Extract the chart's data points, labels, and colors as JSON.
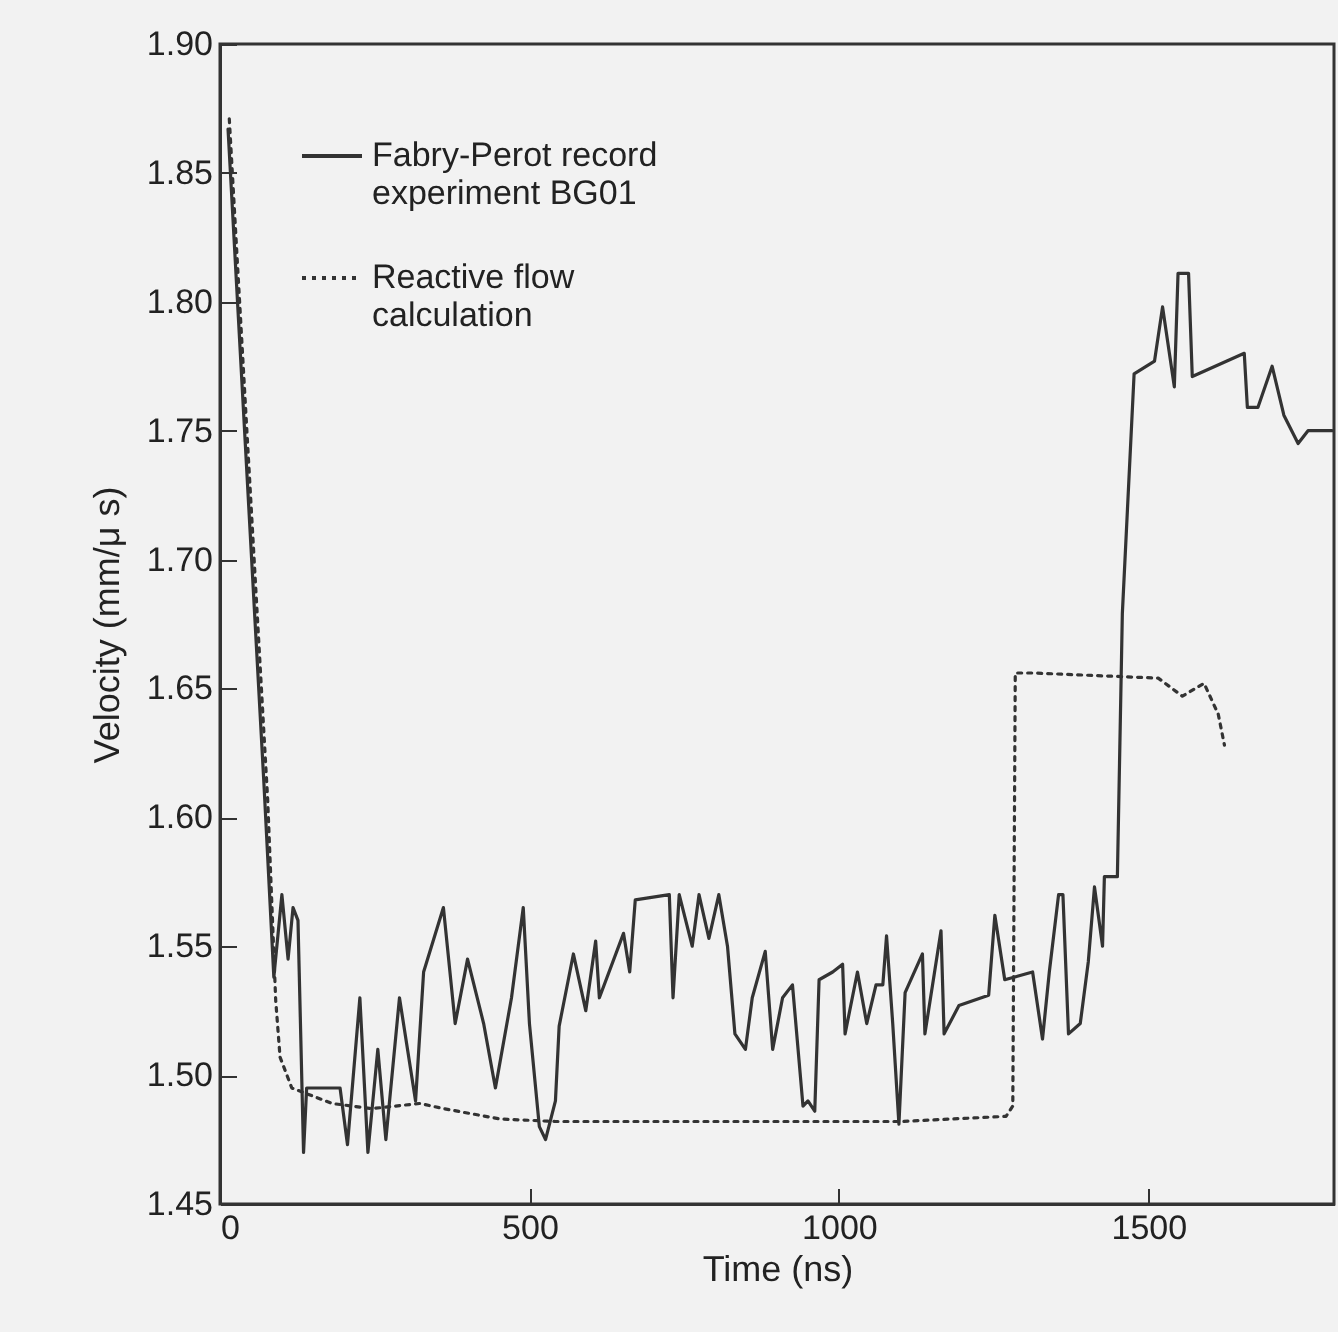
{
  "chart_data": {
    "type": "line",
    "xlabel": "Time (ns)",
    "ylabel": "Velocity (mm/μ s)",
    "xlim": [
      0,
      1800
    ],
    "ylim": [
      1.45,
      1.9
    ],
    "xticks": [
      0,
      500,
      1000,
      1500
    ],
    "yticks": [
      {
        "value": 1.45,
        "label": "1.45"
      },
      {
        "value": 1.5,
        "label": "1.50"
      },
      {
        "value": 1.55,
        "label": "1.55"
      },
      {
        "value": 1.6,
        "label": "1.60"
      },
      {
        "value": 1.65,
        "label": "1.65"
      },
      {
        "value": 1.7,
        "label": "1.70"
      },
      {
        "value": 1.75,
        "label": "1.75"
      },
      {
        "value": 1.8,
        "label": "1.80"
      },
      {
        "value": 1.85,
        "label": "1.85"
      },
      {
        "value": 1.9,
        "label": "1.90"
      }
    ],
    "grid": false,
    "legend": "top left",
    "series": [
      {
        "name": "Fabry-Perot record\nexperiment BG01",
        "color": "#333333",
        "line_style": "solid",
        "x": [
          13,
          71,
          87,
          100,
          110,
          118,
          126,
          135,
          140,
          194,
          206,
          226,
          239,
          255,
          268,
          290,
          316,
          329,
          361,
          380,
          400,
          426,
          445,
          471,
          490,
          500,
          516,
          526,
          542,
          548,
          571,
          591,
          607,
          613,
          652,
          662,
          671,
          726,
          732,
          742,
          763,
          774,
          790,
          806,
          820,
          832,
          849,
          860,
          881,
          893,
          909,
          925,
          942,
          950,
          961,
          968,
          990,
          1006,
          1010,
          1030,
          1045,
          1060,
          1071,
          1077,
          1087,
          1097,
          1107,
          1135,
          1139,
          1165,
          1170,
          1194,
          1242,
          1252,
          1268,
          1313,
          1329,
          1340,
          1355,
          1362,
          1371,
          1390,
          1403,
          1413,
          1426,
          1429,
          1450,
          1458,
          1477,
          1510,
          1523,
          1542,
          1548,
          1565,
          1571,
          1655,
          1660,
          1677,
          1700,
          1719,
          1742,
          1758,
          1797
        ],
        "values": [
          1.867,
          1.613,
          1.538,
          1.57,
          1.545,
          1.565,
          1.56,
          1.47,
          1.495,
          1.495,
          1.473,
          1.53,
          1.47,
          1.51,
          1.475,
          1.53,
          1.49,
          1.54,
          1.565,
          1.52,
          1.545,
          1.52,
          1.495,
          1.53,
          1.565,
          1.52,
          1.48,
          1.475,
          1.49,
          1.519,
          1.547,
          1.525,
          1.552,
          1.53,
          1.555,
          1.54,
          1.568,
          1.57,
          1.53,
          1.57,
          1.55,
          1.57,
          1.553,
          1.57,
          1.55,
          1.516,
          1.51,
          1.53,
          1.548,
          1.51,
          1.53,
          1.535,
          1.488,
          1.49,
          1.486,
          1.537,
          1.54,
          1.543,
          1.516,
          1.54,
          1.52,
          1.535,
          1.535,
          1.554,
          1.52,
          1.481,
          1.532,
          1.547,
          1.516,
          1.556,
          1.516,
          1.527,
          1.531,
          1.562,
          1.537,
          1.54,
          1.514,
          1.54,
          1.57,
          1.57,
          1.516,
          1.52,
          1.544,
          1.573,
          1.55,
          1.577,
          1.577,
          1.679,
          1.772,
          1.777,
          1.798,
          1.767,
          1.811,
          1.811,
          1.771,
          1.78,
          1.759,
          1.759,
          1.775,
          1.756,
          1.745,
          1.75,
          1.75
        ]
      },
      {
        "name": "Reactive flow\ncalculation",
        "color": "#333333",
        "line_style": "dotted",
        "x": [
          15,
          77,
          90,
          97,
          116,
          181,
          245,
          323,
          361,
          452,
          542,
          700,
          900,
          1100,
          1270,
          1281,
          1285,
          1313,
          1516,
          1555,
          1590,
          1613,
          1623
        ],
        "values": [
          1.871,
          1.607,
          1.529,
          1.507,
          1.495,
          1.489,
          1.487,
          1.489,
          1.487,
          1.483,
          1.482,
          1.482,
          1.482,
          1.482,
          1.484,
          1.488,
          1.656,
          1.656,
          1.654,
          1.647,
          1.652,
          1.64,
          1.628
        ]
      }
    ]
  }
}
